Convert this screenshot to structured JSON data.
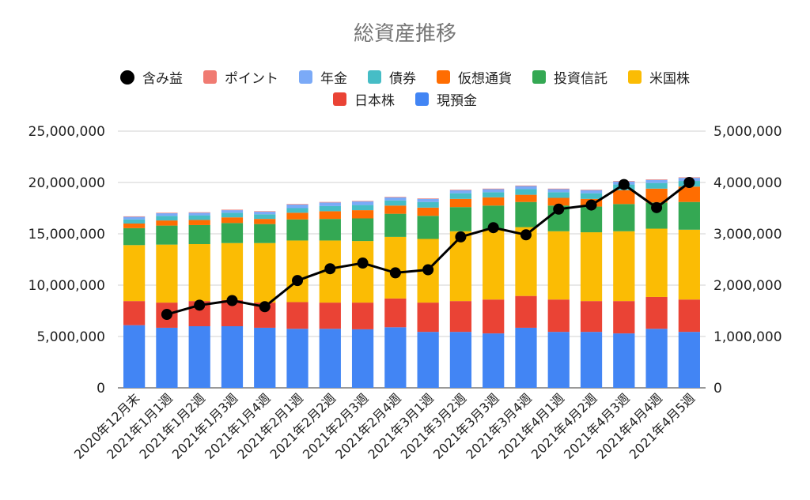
{
  "chart_data": {
    "type": "bar",
    "stacked": true,
    "title": "総資産推移",
    "categories": [
      "2020年12月末",
      "2021年1月1週",
      "2021年1月2週",
      "2021年1月3週",
      "2021年1月4週",
      "2021年2月1週",
      "2021年2月2週",
      "2021年2月3週",
      "2021年2月4週",
      "2021年3月1週",
      "2021年3月2週",
      "2021年3月3週",
      "2021年3月4週",
      "2021年4月1週",
      "2021年4月2週",
      "2021年4月3週",
      "2021年4月4週",
      "2021年4月5週"
    ],
    "ylim": [
      0,
      25000000
    ],
    "y2lim": [
      0,
      5000000
    ],
    "yticks": [
      "0",
      "5,000,000",
      "10,000,000",
      "15,000,000",
      "20,000,000",
      "25,000,000"
    ],
    "y2ticks": [
      "0",
      "1,000,000",
      "2,000,000",
      "3,000,000",
      "4,000,000",
      "5,000,000"
    ],
    "grid": true,
    "legend_position": "top",
    "series": [
      {
        "name": "現預金",
        "color": "#4285F4",
        "values": [
          6100000,
          5850000,
          6000000,
          6000000,
          5850000,
          5750000,
          5750000,
          5700000,
          5900000,
          5450000,
          5450000,
          5300000,
          5850000,
          5450000,
          5450000,
          5300000,
          5750000,
          5450000
        ]
      },
      {
        "name": "日本株",
        "color": "#EA4335",
        "values": [
          2350000,
          2450000,
          2450000,
          2550000,
          2450000,
          2600000,
          2550000,
          2600000,
          2800000,
          2850000,
          3000000,
          3300000,
          3100000,
          3150000,
          3000000,
          3150000,
          3100000,
          3150000
        ]
      },
      {
        "name": "米国株",
        "color": "#FBBC04",
        "values": [
          5450000,
          5650000,
          5550000,
          5550000,
          5800000,
          6000000,
          6050000,
          6000000,
          6000000,
          6200000,
          6800000,
          6850000,
          6700000,
          6650000,
          6700000,
          6800000,
          6650000,
          6800000
        ]
      },
      {
        "name": "投資信託",
        "color": "#34A853",
        "values": [
          1650000,
          1850000,
          1850000,
          1950000,
          1850000,
          2050000,
          2100000,
          2200000,
          2250000,
          2250000,
          2350000,
          2300000,
          2450000,
          2500000,
          2500000,
          2650000,
          2550000,
          2700000
        ]
      },
      {
        "name": "仮想通貨",
        "color": "#FF6D01",
        "values": [
          450000,
          500000,
          500000,
          550000,
          500000,
          650000,
          750000,
          800000,
          800000,
          800000,
          800000,
          800000,
          700000,
          750000,
          750000,
          1350000,
          1350000,
          1500000
        ]
      },
      {
        "name": "債券",
        "color": "#46BDC6",
        "values": [
          400000,
          450000,
          450000,
          450000,
          450000,
          450000,
          500000,
          500000,
          500000,
          550000,
          550000,
          500000,
          550000,
          550000,
          550000,
          550000,
          550000,
          550000
        ]
      },
      {
        "name": "年金",
        "color": "#7BAAF7",
        "values": [
          250000,
          250000,
          250000,
          250000,
          250000,
          350000,
          350000,
          350000,
          300000,
          300000,
          300000,
          300000,
          300000,
          300000,
          300000,
          300000,
          300000,
          300000
        ]
      },
      {
        "name": "ポイント",
        "color": "#F07B72",
        "values": [
          50000,
          50000,
          50000,
          50000,
          50000,
          50000,
          50000,
          50000,
          50000,
          50000,
          50000,
          50000,
          50000,
          50000,
          50000,
          50000,
          50000,
          50000
        ]
      }
    ],
    "line_series": {
      "name": "含み益",
      "color": "#000000",
      "axis": "right",
      "values": [
        null,
        1430000,
        1610000,
        1700000,
        1580000,
        2090000,
        2320000,
        2430000,
        2240000,
        2300000,
        2940000,
        3120000,
        2980000,
        3480000,
        3560000,
        3960000,
        3510000,
        4000000
      ]
    },
    "legend_order": [
      "含み益",
      "ポイント",
      "年金",
      "債券",
      "仮想通貨",
      "投資信託",
      "米国株",
      "日本株",
      "現預金"
    ]
  }
}
